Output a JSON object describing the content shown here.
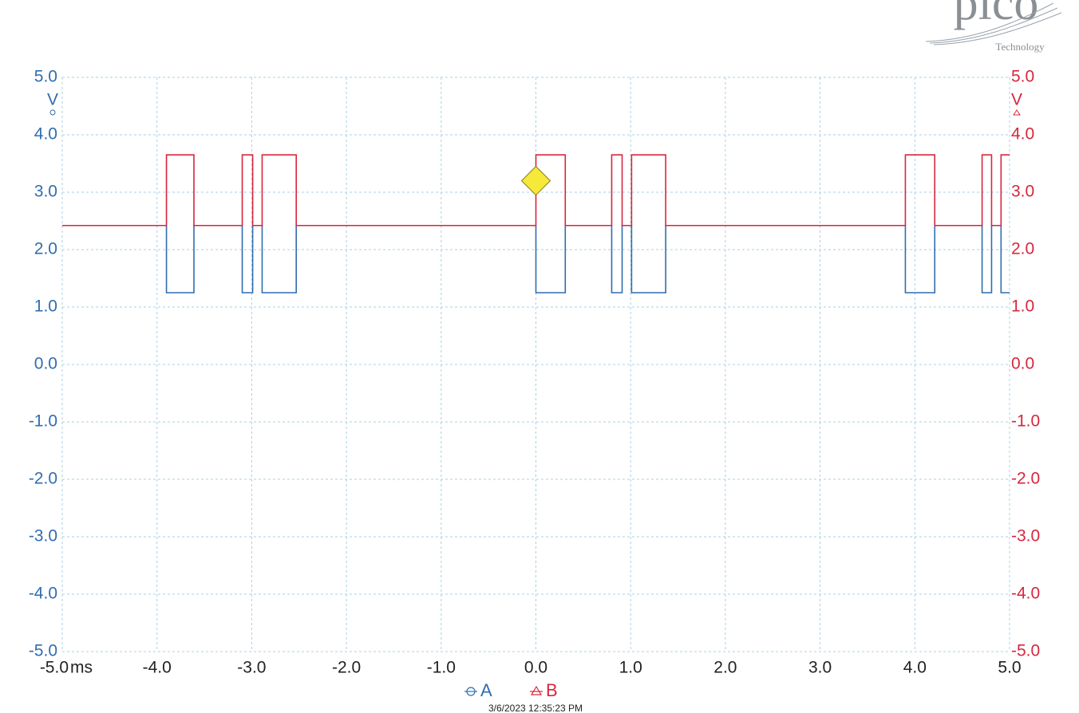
{
  "logo": {
    "name": "pico",
    "tagline": "Technology"
  },
  "chart_data": {
    "type": "line",
    "x_unit": "ms",
    "y_unit": "V",
    "y2_unit": "V",
    "timestamp": "3/6/2023 12:35:23 PM",
    "xlim": [
      -5,
      5
    ],
    "xticks": [
      {
        "value": -5,
        "label": "-5.0"
      },
      {
        "value": -4,
        "label": "-4.0"
      },
      {
        "value": -3,
        "label": "-3.0"
      },
      {
        "value": -2,
        "label": "-2.0"
      },
      {
        "value": -1,
        "label": "-1.0"
      },
      {
        "value": 0,
        "label": "0.0"
      },
      {
        "value": 1,
        "label": "1.0"
      },
      {
        "value": 2,
        "label": "2.0"
      },
      {
        "value": 3,
        "label": "3.0"
      },
      {
        "value": 4,
        "label": "4.0"
      },
      {
        "value": 5,
        "label": "5.0"
      }
    ],
    "ylim": [
      -5,
      5
    ],
    "yticks": [
      {
        "value": -5,
        "label": "-5.0"
      },
      {
        "value": -4,
        "label": "-4.0"
      },
      {
        "value": -3,
        "label": "-3.0"
      },
      {
        "value": -2,
        "label": "-2.0"
      },
      {
        "value": -1,
        "label": "-1.0"
      },
      {
        "value": 0,
        "label": "0.0"
      },
      {
        "value": 1,
        "label": "1.0"
      },
      {
        "value": 2,
        "label": "2.0"
      },
      {
        "value": 3,
        "label": "3.0"
      },
      {
        "value": 4,
        "label": "4.0"
      },
      {
        "value": 5,
        "label": "5.0"
      }
    ],
    "y2lim": [
      -5,
      5
    ],
    "y2ticks": [
      {
        "value": -5,
        "label": "-5.0"
      },
      {
        "value": -4,
        "label": "-4.0"
      },
      {
        "value": -3,
        "label": "-3.0"
      },
      {
        "value": -2,
        "label": "-2.0"
      },
      {
        "value": -1,
        "label": "-1.0"
      },
      {
        "value": 0,
        "label": "0.0"
      },
      {
        "value": 1,
        "label": "1.0"
      },
      {
        "value": 2,
        "label": "2.0"
      },
      {
        "value": 3,
        "label": "3.0"
      },
      {
        "value": 4,
        "label": "4.0"
      },
      {
        "value": 5,
        "label": "5.0"
      }
    ],
    "grid": true,
    "x": [
      -5,
      -3.9,
      -3.9,
      -3.61,
      -3.61,
      -3.1,
      -3.1,
      -2.99,
      -2.99,
      -2.89,
      -2.89,
      -2.53,
      -2.53,
      0,
      0,
      0.31,
      0.31,
      0.8,
      0.8,
      0.91,
      0.91,
      1.01,
      1.01,
      1.37,
      1.37,
      3.9,
      3.9,
      4.21,
      4.21,
      4.71,
      4.71,
      4.81,
      4.81,
      4.91,
      4.91,
      5
    ],
    "series": [
      {
        "name": "A",
        "color": "#2f6db0",
        "values": [
          2.42,
          2.42,
          1.25,
          1.25,
          2.42,
          2.42,
          1.25,
          1.25,
          2.42,
          2.42,
          1.25,
          1.25,
          2.42,
          2.42,
          1.25,
          1.25,
          2.42,
          2.42,
          1.25,
          1.25,
          2.42,
          2.42,
          1.25,
          1.25,
          2.42,
          2.42,
          1.25,
          1.25,
          2.42,
          2.42,
          1.25,
          1.25,
          2.42,
          2.42,
          1.25,
          1.25
        ]
      },
      {
        "name": "B",
        "color": "#d7263d",
        "axis": "y2",
        "values": [
          2.42,
          2.42,
          3.65,
          3.65,
          2.42,
          2.42,
          3.65,
          3.65,
          2.42,
          2.42,
          3.65,
          3.65,
          2.42,
          2.42,
          3.65,
          3.65,
          2.42,
          2.42,
          3.65,
          3.65,
          2.42,
          2.42,
          3.65,
          3.65,
          2.42,
          2.42,
          3.65,
          3.65,
          2.42,
          2.42,
          3.65,
          3.65,
          2.42,
          2.42,
          3.65,
          3.65
        ]
      }
    ],
    "trigger": {
      "x": 0,
      "y": 3.2,
      "color": "#f7e93a"
    }
  }
}
